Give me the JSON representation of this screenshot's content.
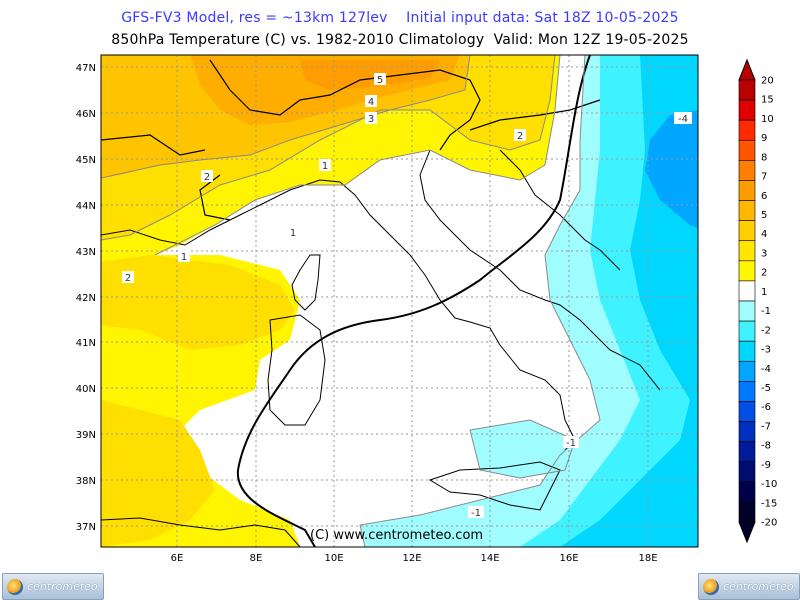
{
  "header": {
    "line1": "GFS-FV3 Model, res = ~13km 127lev    Initial input data: Sat 18Z 10-05-2025",
    "line2": "850hPa Temperature (C) vs. 1982-2010 Climatology  Valid: Mon 12Z 19-05-2025"
  },
  "map": {
    "lat_labels": [
      "47N",
      "46N",
      "45N",
      "44N",
      "43N",
      "42N",
      "41N",
      "40N",
      "39N",
      "38N",
      "37N"
    ],
    "lon_labels": [
      "6E",
      "8E",
      "10E",
      "12E",
      "14E",
      "16E",
      "18E"
    ],
    "copyright": "(C) www.centrometeo.com",
    "contour_labels": [
      "5",
      "4",
      "3",
      "2",
      "2",
      "1",
      "1",
      "1",
      "2",
      "-1",
      "-1",
      "-4"
    ]
  },
  "colorbar": {
    "labels": [
      "20",
      "15",
      "10",
      "9",
      "8",
      "7",
      "6",
      "5",
      "4",
      "3",
      "2",
      "1",
      "-1",
      "-2",
      "-3",
      "-4",
      "-5",
      "-6",
      "-7",
      "-8",
      "-9",
      "-10",
      "-15",
      "-20"
    ],
    "colors": [
      "#b80000",
      "#e00000",
      "#ff2a00",
      "#ff5500",
      "#ff7f00",
      "#ff9d00",
      "#ffb800",
      "#ffcf00",
      "#ffe600",
      "#fff700",
      "#ffffff",
      "#9ffcff",
      "#3ef3ff",
      "#00d7ff",
      "#00a6ff",
      "#0078ff",
      "#0050e6",
      "#0030c0",
      "#001a9a",
      "#000c70",
      "#000048",
      "#000028"
    ]
  },
  "logos": {
    "left": "centrometeo",
    "right": "centrometeo"
  }
}
